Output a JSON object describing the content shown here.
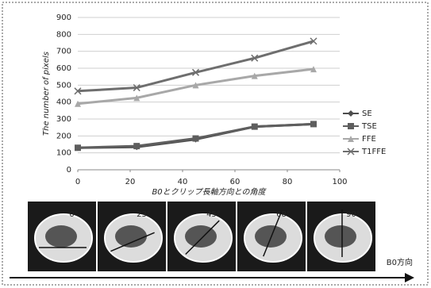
{
  "chart_data": {
    "type": "line",
    "y_label": "The number of pixels",
    "x_label": "B0とクリップ長軸方向との角度",
    "x": [
      0,
      22.5,
      45,
      67.5,
      90
    ],
    "series": [
      {
        "name": "SE",
        "color": "#4d4d4d",
        "marker": "diamond",
        "values": [
          130,
          135,
          180,
          255,
          270
        ]
      },
      {
        "name": "TSE",
        "color": "#5e5e5e",
        "marker": "square",
        "values": [
          130,
          140,
          185,
          255,
          270
        ]
      },
      {
        "name": "FFE",
        "color": "#a8a8a8",
        "marker": "triangle",
        "values": [
          390,
          425,
          500,
          555,
          595
        ]
      },
      {
        "name": "T1FFE",
        "color": "#6e6e6e",
        "marker": "x",
        "values": [
          465,
          485,
          575,
          660,
          760
        ]
      }
    ],
    "xlim": [
      0,
      100
    ],
    "xticks": [
      0,
      20,
      40,
      60,
      80,
      100
    ],
    "ylim": [
      0,
      900
    ],
    "yticks": [
      0,
      100,
      200,
      300,
      400,
      500,
      600,
      700,
      800,
      900
    ],
    "grid": true,
    "legend": "right"
  },
  "figure": {
    "angle_labels": [
      "0°",
      "23°",
      "45°",
      "68°",
      "90°"
    ],
    "direction_label": "B0方向"
  }
}
